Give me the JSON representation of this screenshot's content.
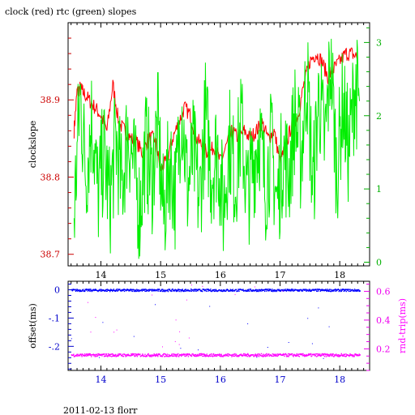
{
  "chart_data": [
    {
      "type": "line",
      "title": "clock (red) rtc (green) slopes",
      "ylabel": "clockslope",
      "xlim": [
        13.45,
        18.5
      ],
      "xticks": [
        14,
        15,
        16,
        17,
        18
      ],
      "ylim": [
        38.685,
        39.0
      ],
      "yticks": [
        38.7,
        38.8,
        38.9
      ],
      "y2lim": [
        -0.05,
        3.27
      ],
      "y2ticks": [
        0,
        1,
        2,
        3
      ],
      "colors": {
        "axis": "#000000",
        "left": "#cc0000",
        "right": "#00b000",
        "tick_x": "#000000"
      },
      "series": [
        {
          "axis": "left",
          "color": "#ff0000",
          "x": [
            13.55,
            13.6,
            13.65,
            13.7,
            13.8,
            13.9,
            14.0,
            14.1,
            14.2,
            14.3,
            14.4,
            14.5,
            14.6,
            14.7,
            14.8,
            14.9,
            15.0,
            15.1,
            15.2,
            15.3,
            15.4,
            15.5,
            15.6,
            15.7,
            15.8,
            15.9,
            16.0,
            16.1,
            16.2,
            16.3,
            16.4,
            16.5,
            16.6,
            16.7,
            16.8,
            16.9,
            17.0,
            17.1,
            17.2,
            17.3,
            17.4,
            17.5,
            17.6,
            17.7,
            17.8,
            17.9,
            18.0,
            18.1,
            18.2,
            18.3
          ],
          "y": [
            38.86,
            38.91,
            38.915,
            38.91,
            38.9,
            38.89,
            38.88,
            38.86,
            38.92,
            38.87,
            38.86,
            38.85,
            38.845,
            38.83,
            38.85,
            38.85,
            38.81,
            38.82,
            38.85,
            38.87,
            38.89,
            38.88,
            38.85,
            38.84,
            38.83,
            38.84,
            38.82,
            38.84,
            38.86,
            38.85,
            38.86,
            38.85,
            38.86,
            38.87,
            38.85,
            38.86,
            38.82,
            38.84,
            38.87,
            38.88,
            38.92,
            38.95,
            38.96,
            38.95,
            38.93,
            38.94,
            38.95,
            38.96,
            38.96,
            38.955
          ]
        },
        {
          "axis": "right",
          "color": "#00ee00",
          "x": [
            13.55,
            13.65,
            13.75,
            13.85,
            13.95,
            14.05,
            14.15,
            14.25,
            14.35,
            14.45,
            14.55,
            14.65,
            14.75,
            14.85,
            14.95,
            15.05,
            15.15,
            15.25,
            15.35,
            15.45,
            15.55,
            15.65,
            15.75,
            15.85,
            15.95,
            16.05,
            16.15,
            16.25,
            16.35,
            16.45,
            16.55,
            16.65,
            16.75,
            16.85,
            16.95,
            17.05,
            17.15,
            17.25,
            17.35,
            17.45,
            17.55,
            17.65,
            17.75,
            17.85,
            17.95,
            18.05,
            18.15,
            18.25,
            18.33
          ],
          "y": [
            0.6,
            2.3,
            1.2,
            2.0,
            0.9,
            1.5,
            0.8,
            1.7,
            1.0,
            1.8,
            1.3,
            0.7,
            1.6,
            1.1,
            1.9,
            0.6,
            1.4,
            0.9,
            2.2,
            1.0,
            1.5,
            0.8,
            2.0,
            1.2,
            1.6,
            0.7,
            1.7,
            1.1,
            1.9,
            0.9,
            1.3,
            1.8,
            1.0,
            1.6,
            0.8,
            1.5,
            1.2,
            2.0,
            1.4,
            2.6,
            1.0,
            2.3,
            1.6,
            2.8,
            1.2,
            2.2,
            1.5,
            2.4,
            2.2
          ]
        }
      ]
    },
    {
      "type": "scatter",
      "xlabel": "",
      "ylabel": "offset(ms)",
      "y2label": "rnd-trip(ms)",
      "xlim": [
        13.45,
        18.5
      ],
      "xticks": [
        14,
        15,
        16,
        17,
        18
      ],
      "ylim": [
        -0.285,
        0.03
      ],
      "yticks": [
        0,
        -0.1,
        -0.2
      ],
      "y2lim": [
        0.05,
        0.67
      ],
      "y2ticks": [
        0.2,
        0.4,
        0.6
      ],
      "colors": {
        "axis": "#000000",
        "left": "#0000cc",
        "right": "#ee00ee",
        "tick_x": "#0000cc"
      },
      "series": [
        {
          "name": "offset",
          "axis": "left",
          "color": "#0000ff",
          "band": [
            13.5,
            18.33,
            -0.004,
            0.004
          ]
        },
        {
          "name": "rnd-trip",
          "axis": "right",
          "color": "#ff00ff",
          "band": [
            13.5,
            18.33,
            0.15,
            0.17
          ]
        }
      ]
    }
  ],
  "footer": "2011-02-13 florr"
}
